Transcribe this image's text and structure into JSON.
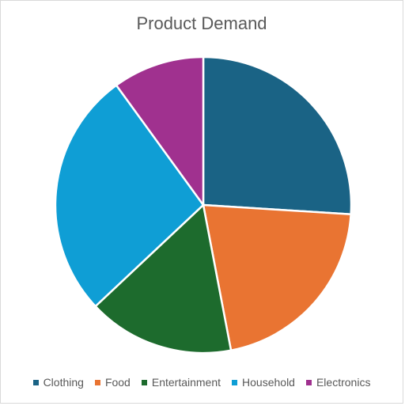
{
  "chart_data": {
    "type": "pie",
    "title": "Product Demand",
    "categories": [
      "Clothing",
      "Food",
      "Entertainment",
      "Household",
      "Electronics"
    ],
    "values": [
      26,
      21,
      16,
      27,
      10
    ],
    "colors": [
      "#1a6385",
      "#e97432",
      "#1d6b2d",
      "#0f9ed5",
      "#a0318f"
    ],
    "legend_position": "bottom"
  }
}
